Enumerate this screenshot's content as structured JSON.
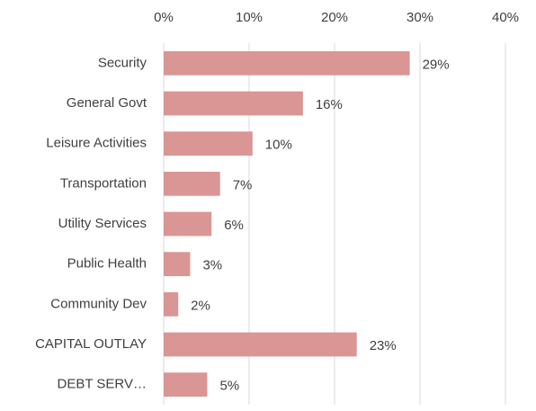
{
  "chart_data": {
    "type": "hbar",
    "categories": [
      "Security",
      "General Govt",
      "Leisure Activities",
      "Transportation",
      "Utility Services",
      "Public Health",
      "Community Dev",
      "CAPITAL OUTLAY",
      "DEBT SERV…"
    ],
    "values": [
      28.8,
      16.3,
      10.4,
      6.6,
      5.6,
      3.1,
      1.7,
      22.6,
      5.1
    ],
    "value_labels": [
      "29%",
      "16%",
      "10%",
      "7%",
      "6%",
      "3%",
      "2%",
      "23%",
      "5%"
    ],
    "color": "#d99694",
    "xlim": [
      0,
      40
    ],
    "xticks": [
      {
        "value": 0,
        "label": "0%"
      },
      {
        "value": 10,
        "label": "10%"
      },
      {
        "value": 20,
        "label": "20%"
      },
      {
        "value": 30,
        "label": "30%"
      },
      {
        "value": 40,
        "label": "40%"
      }
    ],
    "grid": true
  }
}
